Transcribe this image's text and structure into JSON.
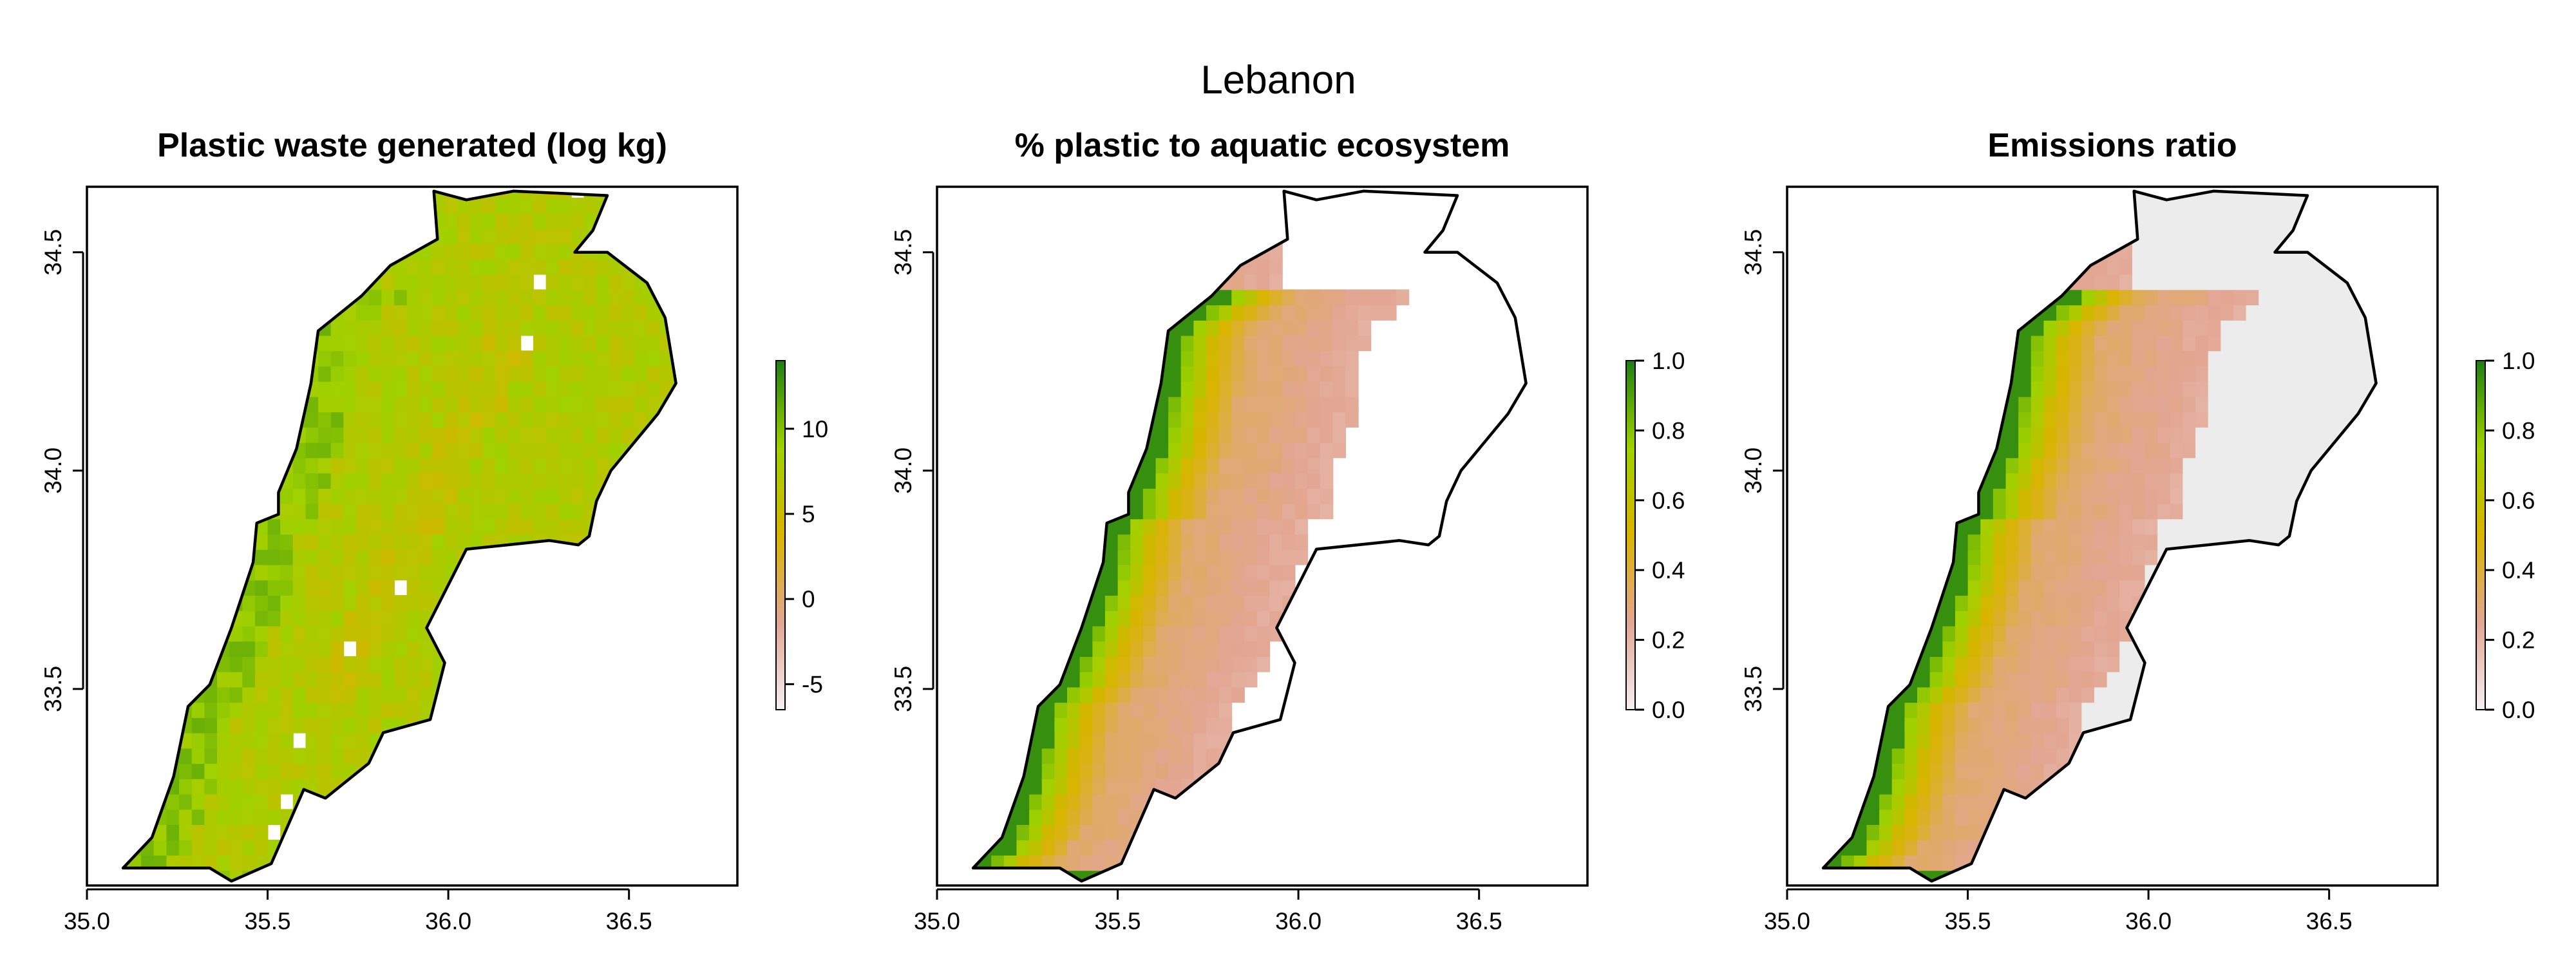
{
  "figure": {
    "title": "Lebanon"
  },
  "chart_data": [
    {
      "type": "heatmap",
      "title": "Plastic waste generated (log kg)",
      "xlabel": "",
      "ylabel": "",
      "xlim": [
        35.0,
        36.8
      ],
      "ylim": [
        33.05,
        34.65
      ],
      "x_ticks": [
        "35.0",
        "35.5",
        "36.0",
        "36.5"
      ],
      "y_ticks": [
        "33.5",
        "34.0",
        "34.5"
      ],
      "legend": {
        "position": "right",
        "range": [
          -6.5,
          14
        ],
        "ticks": [
          "-5",
          "0",
          "5",
          "10"
        ],
        "colors": [
          "#f5f0f0",
          "#e2a693",
          "#d9b400",
          "#9fd100",
          "#1c7f12"
        ]
      },
      "coverage": "full",
      "summary": {
        "typical": 8,
        "coastal": 11,
        "mountain_ridge": 3
      }
    },
    {
      "type": "heatmap",
      "title": "% plastic to aquatic ecosystem",
      "xlabel": "",
      "ylabel": "",
      "xlim": [
        35.0,
        36.8
      ],
      "ylim": [
        33.05,
        34.65
      ],
      "x_ticks": [
        "35.0",
        "35.5",
        "36.0",
        "36.5"
      ],
      "y_ticks": [
        "33.5",
        "34.0",
        "34.5"
      ],
      "legend": {
        "position": "right",
        "range": [
          0.0,
          1.0
        ],
        "ticks": [
          "0.0",
          "0.2",
          "0.4",
          "0.6",
          "0.8",
          "1.0"
        ],
        "colors": [
          "#f5f0f0",
          "#e2a693",
          "#d9b400",
          "#9fd100",
          "#1c7f12"
        ]
      },
      "coverage": "western",
      "summary": {
        "coast": 1.0,
        "inland_band": 0.35,
        "inland_edge": 0.05
      }
    },
    {
      "type": "heatmap",
      "title": "Emissions ratio",
      "xlabel": "",
      "ylabel": "",
      "xlim": [
        35.0,
        36.8
      ],
      "ylim": [
        33.05,
        34.65
      ],
      "x_ticks": [
        "35.0",
        "35.5",
        "36.0",
        "36.5"
      ],
      "y_ticks": [
        "33.5",
        "34.0",
        "34.5"
      ],
      "legend": {
        "position": "right",
        "range": [
          0.0,
          1.0
        ],
        "ticks": [
          "0.0",
          "0.2",
          "0.4",
          "0.6",
          "0.8",
          "1.0"
        ],
        "colors": [
          "#f5f0f0",
          "#e2a693",
          "#d9b400",
          "#9fd100",
          "#1c7f12"
        ]
      },
      "coverage": "full",
      "summary": {
        "coast": 1.0,
        "inland_band": 0.35,
        "interior": 0.0
      }
    }
  ],
  "boundary": {
    "name": "Lebanon",
    "lonlat": [
      [
        35.1,
        33.09
      ],
      [
        35.18,
        33.16
      ],
      [
        35.24,
        33.3
      ],
      [
        35.28,
        33.46
      ],
      [
        35.34,
        33.51
      ],
      [
        35.4,
        33.64
      ],
      [
        35.46,
        33.79
      ],
      [
        35.47,
        33.88
      ],
      [
        35.53,
        33.9
      ],
      [
        35.53,
        33.95
      ],
      [
        35.58,
        34.05
      ],
      [
        35.62,
        34.2
      ],
      [
        35.64,
        34.32
      ],
      [
        35.76,
        34.4
      ],
      [
        35.84,
        34.47
      ],
      [
        35.97,
        34.53
      ],
      [
        35.96,
        34.64
      ],
      [
        36.05,
        34.62
      ],
      [
        36.18,
        34.64
      ],
      [
        36.44,
        34.63
      ],
      [
        36.4,
        34.55
      ],
      [
        36.35,
        34.5
      ],
      [
        36.44,
        34.5
      ],
      [
        36.55,
        34.43
      ],
      [
        36.6,
        34.35
      ],
      [
        36.63,
        34.2
      ],
      [
        36.58,
        34.13
      ],
      [
        36.51,
        34.06
      ],
      [
        36.45,
        34.0
      ],
      [
        36.41,
        33.93
      ],
      [
        36.39,
        33.85
      ],
      [
        36.36,
        33.83
      ],
      [
        36.28,
        33.84
      ],
      [
        36.05,
        33.82
      ],
      [
        35.94,
        33.64
      ],
      [
        35.99,
        33.56
      ],
      [
        35.95,
        33.43
      ],
      [
        35.82,
        33.4
      ],
      [
        35.78,
        33.33
      ],
      [
        35.66,
        33.25
      ],
      [
        35.6,
        33.27
      ],
      [
        35.51,
        33.1
      ],
      [
        35.4,
        33.06
      ],
      [
        35.34,
        33.09
      ]
    ]
  }
}
